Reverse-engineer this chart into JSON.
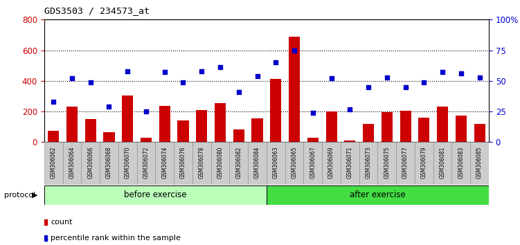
{
  "title": "GDS3503 / 234573_at",
  "categories": [
    "GSM306062",
    "GSM306064",
    "GSM306066",
    "GSM306068",
    "GSM306070",
    "GSM306072",
    "GSM306074",
    "GSM306076",
    "GSM306078",
    "GSM306080",
    "GSM306082",
    "GSM306084",
    "GSM306063",
    "GSM306065",
    "GSM306067",
    "GSM306069",
    "GSM306071",
    "GSM306073",
    "GSM306075",
    "GSM306077",
    "GSM306079",
    "GSM306081",
    "GSM306083",
    "GSM306085"
  ],
  "counts": [
    75,
    230,
    150,
    65,
    305,
    30,
    235,
    140,
    210,
    255,
    85,
    155,
    415,
    690,
    30,
    200,
    10,
    120,
    195,
    205,
    160,
    230,
    175,
    120
  ],
  "percentile": [
    33,
    52,
    49,
    29,
    58,
    25,
    57,
    49,
    58,
    61,
    41,
    54,
    65,
    75,
    24,
    52,
    27,
    45,
    53,
    45,
    49,
    57,
    56,
    53
  ],
  "before_exercise_count": 12,
  "group_labels": [
    "before exercise",
    "after exercise"
  ],
  "group_colors": [
    "#bbffbb",
    "#44dd44"
  ],
  "bar_color": "#cc0000",
  "dot_color": "#0000cc",
  "ylim_left": [
    0,
    800
  ],
  "ylim_right": [
    0,
    100
  ],
  "yticks_left": [
    0,
    200,
    400,
    600,
    800
  ],
  "yticks_right": [
    0,
    25,
    50,
    75,
    100
  ],
  "background_color": "#ffffff",
  "legend_count_label": "count",
  "legend_pct_label": "percentile rank within the sample"
}
